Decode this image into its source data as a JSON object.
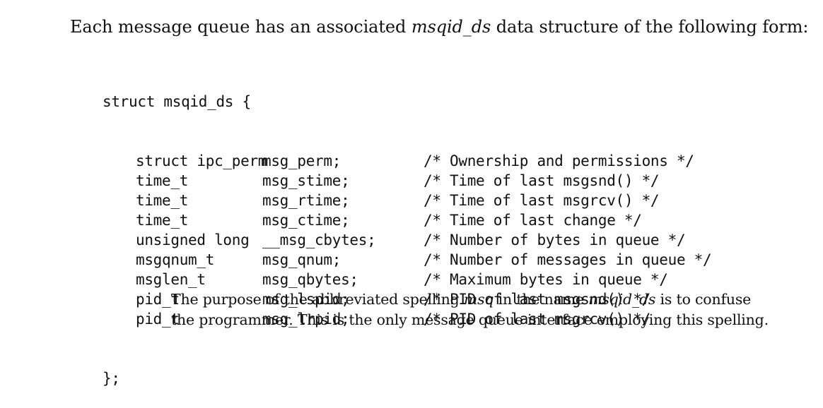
{
  "intro": {
    "prefix": "Each message queue has an associated ",
    "struct_name": "msqid_ds",
    "suffix": " data structure of the following form:"
  },
  "code": {
    "opening": "struct msqid_ds {",
    "fields": [
      {
        "type": "struct ipc_perm",
        "name": "msg_perm;",
        "comment": "/* Ownership and permissions */"
      },
      {
        "type": "time_t",
        "name": "msg_stime;",
        "comment": "/* Time of last msgsnd() */"
      },
      {
        "type": "time_t",
        "name": "msg_rtime;",
        "comment": "/* Time of last msgrcv() */"
      },
      {
        "type": "time_t",
        "name": "msg_ctime;",
        "comment": "/* Time of last change */"
      },
      {
        "type": "unsigned long",
        "name": "__msg_cbytes;",
        "comment": "/* Number of bytes in queue */"
      },
      {
        "type": "msgqnum_t",
        "name": "msg_qnum;",
        "comment": "/* Number of messages in queue */"
      },
      {
        "type": "msglen_t",
        "name": "msg_qbytes;",
        "comment": "/* Maximum bytes in queue */"
      },
      {
        "type": "pid_t",
        "name": "msg_lspid;",
        "comment": "/* PID of last msgsnd() */"
      },
      {
        "type": "pid_t",
        "name": "msg_lrpid;",
        "comment": "/* PID of last msgrcv() */"
      }
    ],
    "closing": "};"
  },
  "note": {
    "line1_prefix": "The purpose of the abbreviated spelling ",
    "line1_em1": "msq",
    "line1_mid": " in the name ",
    "line1_em2": "msqid_ds",
    "line1_suffix": " is to confuse",
    "line2": "the programmer. This is the only message queue interface employing this spelling."
  }
}
